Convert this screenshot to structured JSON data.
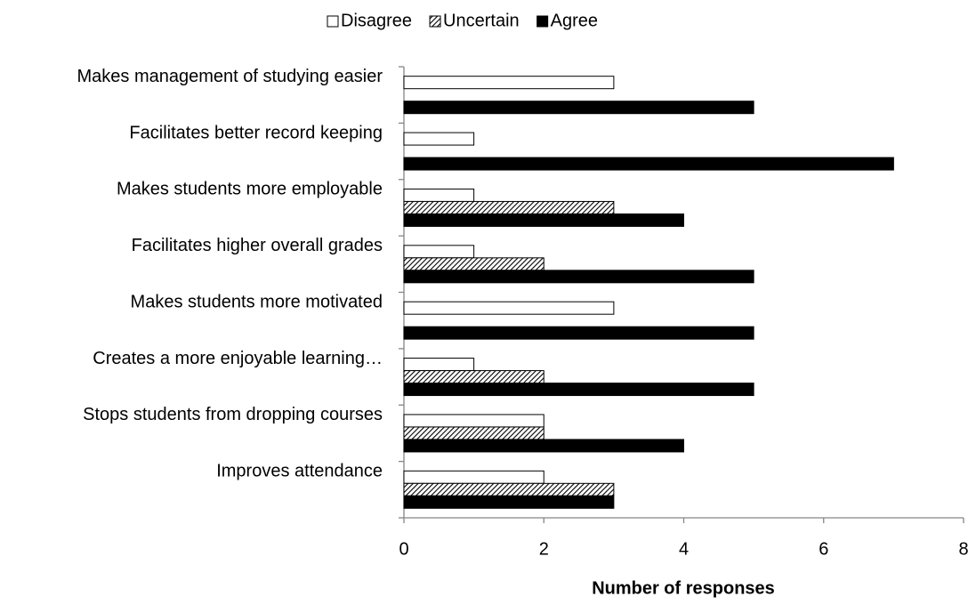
{
  "chart_data": {
    "type": "bar",
    "orientation": "horizontal",
    "x_label": "Number of responses",
    "categories": [
      "Makes management of studying easier",
      "Facilitates better record keeping",
      "Makes students more employable",
      "Facilitates higher overall grades",
      "Makes students more motivated",
      "Creates a more enjoyable learning…",
      "Stops students from dropping courses",
      "Improves attendance"
    ],
    "series": [
      {
        "name": "Disagree",
        "color": "#ffffff",
        "values": [
          3,
          1,
          1,
          1,
          3,
          1,
          2,
          2
        ]
      },
      {
        "name": "Uncertain",
        "color": "#000000",
        "pattern": "hatch",
        "values": [
          0,
          0,
          3,
          2,
          0,
          2,
          2,
          3
        ]
      },
      {
        "name": "Agree",
        "color": "#000000",
        "values": [
          5,
          7,
          4,
          5,
          5,
          5,
          4,
          3
        ]
      }
    ],
    "xlim": [
      0,
      8
    ],
    "xticks": [
      0,
      2,
      4,
      6,
      8
    ],
    "grid": false,
    "legend": "top"
  }
}
